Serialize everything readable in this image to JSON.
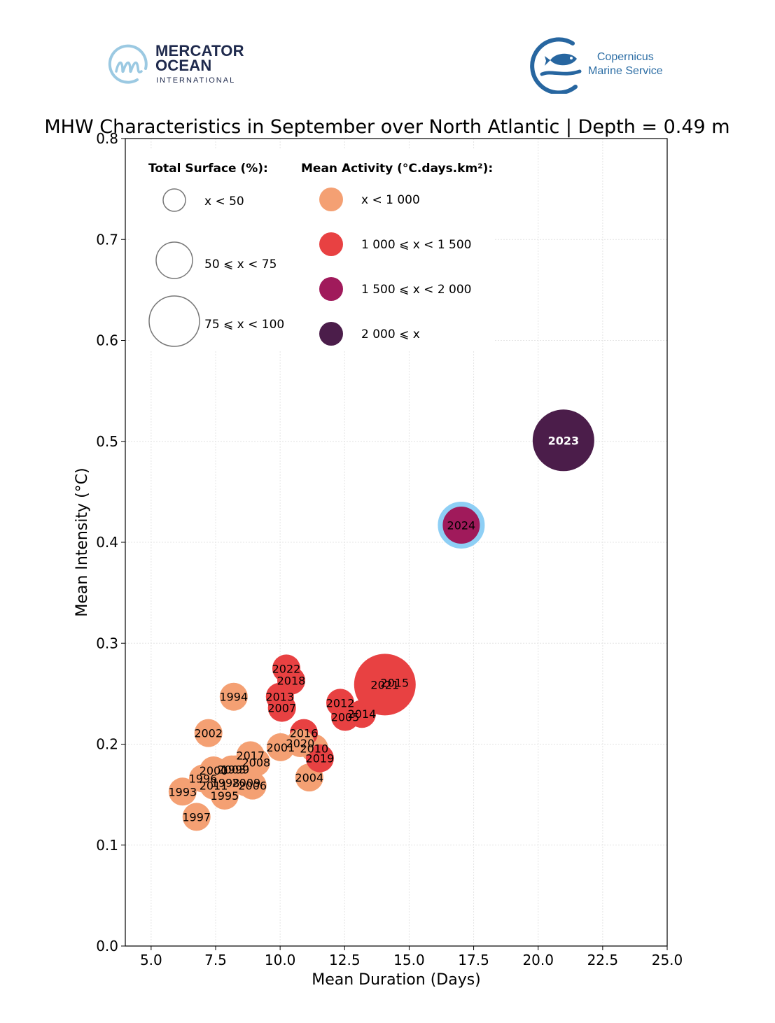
{
  "logos": {
    "mercator": {
      "line1": "MERCATOR",
      "line2": "OCEAN",
      "line3": "INTERNATIONAL"
    },
    "copernicus": {
      "line1": "Copernicus",
      "line2": "Marine Service"
    }
  },
  "chart_data": {
    "type": "scatter",
    "title": "MHW Characteristics in September over North Atlantic | Depth = 0.49 m",
    "xlabel": "Mean Duration (Days)",
    "ylabel": "Mean Intensity (°C)",
    "xlim": [
      4.0,
      25.0
    ],
    "ylim": [
      0.0,
      0.8
    ],
    "xticks": [
      "5.0",
      "7.5",
      "10.0",
      "12.5",
      "15.0",
      "17.5",
      "20.0",
      "22.5",
      "25.0"
    ],
    "xtick_values": [
      5.0,
      7.5,
      10.0,
      12.5,
      15.0,
      17.5,
      20.0,
      22.5,
      25.0
    ],
    "yticks": [
      "0.0",
      "0.1",
      "0.2",
      "0.3",
      "0.4",
      "0.5",
      "0.6",
      "0.7",
      "0.8"
    ],
    "ytick_values": [
      0.0,
      0.1,
      0.2,
      0.3,
      0.4,
      0.5,
      0.6,
      0.7,
      0.8
    ],
    "grid": true,
    "legend": {
      "placement": "top-left",
      "size_title": "Total Surface (%):",
      "size_classes": [
        {
          "label": "x < 50",
          "class": "small"
        },
        {
          "label": "50 ⩽ x < 75",
          "class": "medium"
        },
        {
          "label": "75 ⩽ x < 100",
          "class": "large"
        }
      ],
      "color_title": "Mean Activity (°C.days.km²):",
      "color_classes": [
        {
          "label": "x < 1 000",
          "color": "#f4a073"
        },
        {
          "label": "1 000 ⩽ x < 1 500",
          "color": "#e84142"
        },
        {
          "label": "1 500 ⩽ x < 2 000",
          "color": "#a01a5b"
        },
        {
          "label": "2 000 ⩽ x",
          "color": "#4b1d4a"
        }
      ]
    },
    "highlight": {
      "year": "2024",
      "outline_color": "#8ecff5"
    },
    "points": [
      {
        "year": "1993",
        "duration": 6.22,
        "intensity": 0.153,
        "surface_class": "small",
        "activity_class": 0
      },
      {
        "year": "1994",
        "duration": 8.2,
        "intensity": 0.247,
        "surface_class": "small",
        "activity_class": 0
      },
      {
        "year": "1995",
        "duration": 7.85,
        "intensity": 0.149,
        "surface_class": "small",
        "activity_class": 0
      },
      {
        "year": "1996",
        "duration": 7.01,
        "intensity": 0.166,
        "surface_class": "small",
        "activity_class": 0
      },
      {
        "year": "1997",
        "duration": 6.76,
        "intensity": 0.128,
        "surface_class": "small",
        "activity_class": 0
      },
      {
        "year": "1998",
        "duration": 7.88,
        "intensity": 0.162,
        "surface_class": "small",
        "activity_class": 0
      },
      {
        "year": "1999",
        "duration": 8.26,
        "intensity": 0.175,
        "surface_class": "small",
        "activity_class": 0
      },
      {
        "year": "2000",
        "duration": 7.42,
        "intensity": 0.174,
        "surface_class": "small",
        "activity_class": 0
      },
      {
        "year": "2001",
        "duration": 10.02,
        "intensity": 0.197,
        "surface_class": "small",
        "activity_class": 0
      },
      {
        "year": "2002",
        "duration": 7.22,
        "intensity": 0.211,
        "surface_class": "small",
        "activity_class": 0
      },
      {
        "year": "2003",
        "duration": 8.12,
        "intensity": 0.175,
        "surface_class": "small",
        "activity_class": 0
      },
      {
        "year": "2004",
        "duration": 11.13,
        "intensity": 0.167,
        "surface_class": "small",
        "activity_class": 0
      },
      {
        "year": "2005",
        "duration": 12.52,
        "intensity": 0.227,
        "surface_class": "small",
        "activity_class": 1
      },
      {
        "year": "2006",
        "duration": 8.93,
        "intensity": 0.159,
        "surface_class": "small",
        "activity_class": 0
      },
      {
        "year": "2007",
        "duration": 10.07,
        "intensity": 0.236,
        "surface_class": "small",
        "activity_class": 1
      },
      {
        "year": "2008",
        "duration": 9.07,
        "intensity": 0.182,
        "surface_class": "small",
        "activity_class": 0
      },
      {
        "year": "2009",
        "duration": 8.69,
        "intensity": 0.162,
        "surface_class": "small",
        "activity_class": 0
      },
      {
        "year": "2010",
        "duration": 11.32,
        "intensity": 0.196,
        "surface_class": "small",
        "activity_class": 0
      },
      {
        "year": "2011",
        "duration": 7.42,
        "intensity": 0.159,
        "surface_class": "small",
        "activity_class": 0
      },
      {
        "year": "2012",
        "duration": 12.33,
        "intensity": 0.241,
        "surface_class": "small",
        "activity_class": 1
      },
      {
        "year": "2013",
        "duration": 9.99,
        "intensity": 0.247,
        "surface_class": "small",
        "activity_class": 1
      },
      {
        "year": "2014",
        "duration": 13.17,
        "intensity": 0.23,
        "surface_class": "small",
        "activity_class": 1
      },
      {
        "year": "2015",
        "duration": 14.44,
        "intensity": 0.261,
        "surface_class": "small",
        "activity_class": 1
      },
      {
        "year": "2016",
        "duration": 10.92,
        "intensity": 0.211,
        "surface_class": "small",
        "activity_class": 1
      },
      {
        "year": "2017",
        "duration": 8.85,
        "intensity": 0.189,
        "surface_class": "small",
        "activity_class": 0
      },
      {
        "year": "2018",
        "duration": 10.43,
        "intensity": 0.263,
        "surface_class": "small",
        "activity_class": 1
      },
      {
        "year": "2019",
        "duration": 11.54,
        "intensity": 0.186,
        "surface_class": "small",
        "activity_class": 1
      },
      {
        "year": "2020",
        "duration": 10.78,
        "intensity": 0.201,
        "surface_class": "small",
        "activity_class": 0
      },
      {
        "year": "2021",
        "duration": 14.06,
        "intensity": 0.259,
        "surface_class": "large",
        "activity_class": 1
      },
      {
        "year": "2022",
        "duration": 10.24,
        "intensity": 0.275,
        "surface_class": "small",
        "activity_class": 1
      },
      {
        "year": "2023",
        "duration": 20.98,
        "intensity": 0.501,
        "surface_class": "large",
        "activity_class": 3
      },
      {
        "year": "2024",
        "duration": 17.02,
        "intensity": 0.417,
        "surface_class": "medium",
        "activity_class": 2
      }
    ]
  }
}
